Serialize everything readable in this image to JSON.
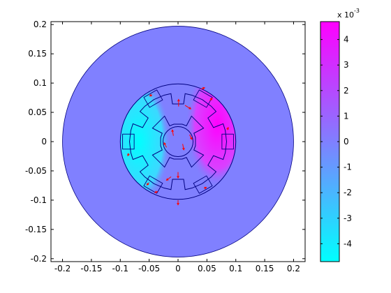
{
  "figure": {
    "background": "#ffffff",
    "plot_background": "#ffffff",
    "field_base_color": "#8080ff",
    "arrow_color": "#ff0000",
    "outline_color": "#000080",
    "colormap": [
      "#00ffff",
      "#ff00ff"
    ],
    "colorbar": {
      "exponent_prefix": "x 10",
      "exponent_value": "-3",
      "min": -4.7,
      "max": 4.7,
      "ticks": [
        4,
        3,
        2,
        1,
        0,
        -1,
        -2,
        -3,
        -4
      ],
      "tick_labels": [
        "4",
        "3",
        "2",
        "1",
        "0",
        "-1",
        "-2",
        "-3",
        "-4"
      ]
    }
  },
  "chart_data": {
    "type": "heatmap",
    "title": "",
    "xlabel": "",
    "ylabel": "",
    "xlim": [
      -0.22,
      0.22
    ],
    "ylim": [
      -0.205,
      0.205
    ],
    "x_ticks": [
      -0.2,
      -0.15,
      -0.1,
      -0.05,
      0,
      0.05,
      0.1,
      0.15,
      0.2
    ],
    "x_tick_labels": [
      "-0.2",
      "-0.15",
      "-0.1",
      "-0.05",
      "0",
      "0.05",
      "0.1",
      "0.15",
      "0.2"
    ],
    "y_ticks": [
      0.2,
      0.15,
      0.1,
      0.05,
      0,
      -0.05,
      -0.1,
      -0.15,
      -0.2
    ],
    "y_tick_labels": [
      "0.2",
      "0.15",
      "0.1",
      "0.05",
      "0",
      "-0.05",
      "-0.1",
      "-0.15",
      "-0.2"
    ],
    "outer_radius": 0.2,
    "stator_outer_radius": 0.1,
    "stator_inner_radius": 0.072,
    "rotor_radius": 0.05,
    "shaft_radius": 0.026,
    "field_left_value": -0.0045,
    "field_right_value": 0.0045,
    "field_background_value": 0
  }
}
